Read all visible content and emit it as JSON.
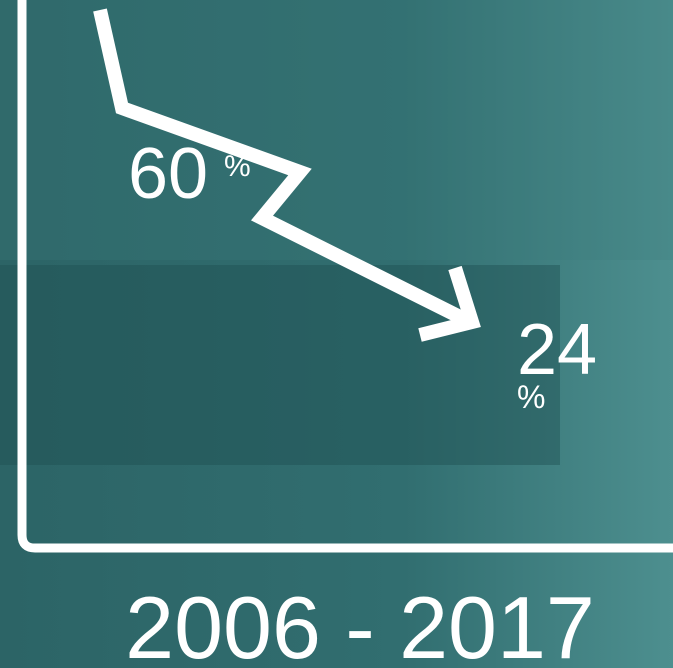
{
  "figures": [
    {
      "number": "60",
      "unit": "%"
    },
    {
      "number": "24",
      "unit": "%"
    }
  ],
  "period": "2006 - 2017"
}
